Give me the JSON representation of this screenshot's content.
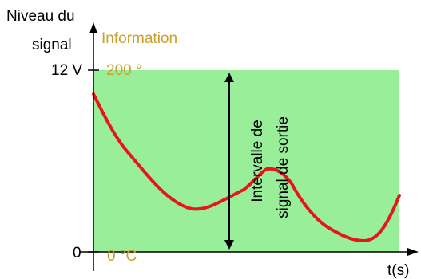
{
  "labels": {
    "y_title_line1": "Niveau du",
    "y_title_line2": "signal",
    "information": "Information",
    "y_top_volt": "12 V",
    "y_top_info": "200 °",
    "y_zero": "0",
    "y_zero_info": "0 °C",
    "x_axis": "t(s)",
    "interval_line1": "Intervalle de",
    "interval_line2": "signal de sortie"
  },
  "colors": {
    "band": "#99ee99",
    "curve": "#e8151b",
    "info_text": "#c8a02a",
    "axis": "#000000"
  },
  "icons": {
    "vertical_axis_arrow": "arrow-up-icon",
    "horizontal_axis_arrow": "arrow-right-icon",
    "interval_arrow": "double-arrow-vertical-icon"
  }
}
